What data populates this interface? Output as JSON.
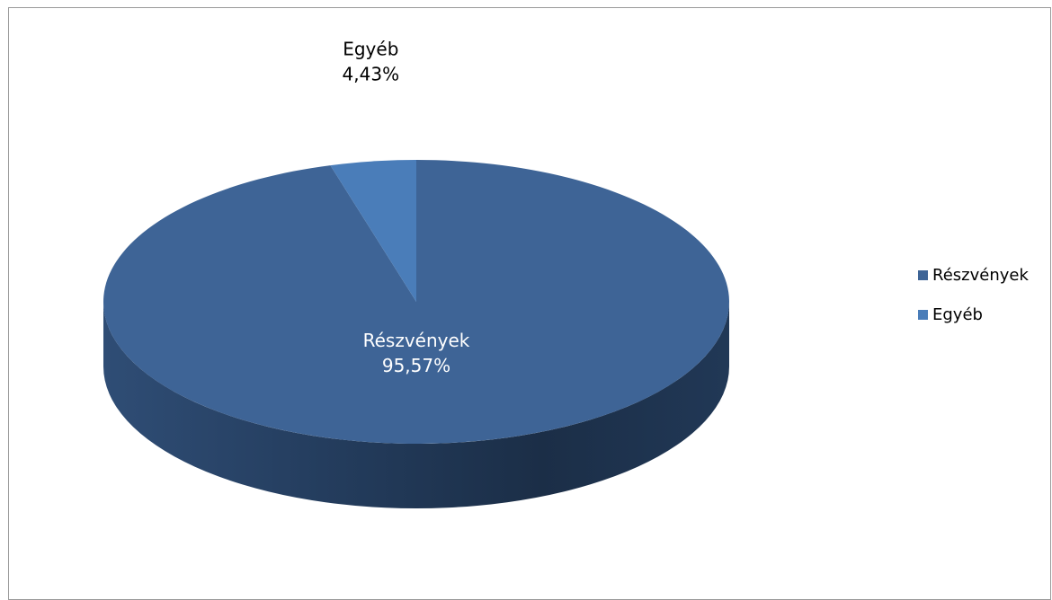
{
  "chart_data": {
    "type": "pie",
    "style": "3d",
    "title": "",
    "categories": [
      "Részvények",
      "Egyéb"
    ],
    "values": [
      95.57,
      4.43
    ],
    "value_labels": [
      "95,57%",
      "4,43%"
    ],
    "legend_position": "right",
    "colors": [
      "#3E6496",
      "#4A7DB9"
    ]
  }
}
